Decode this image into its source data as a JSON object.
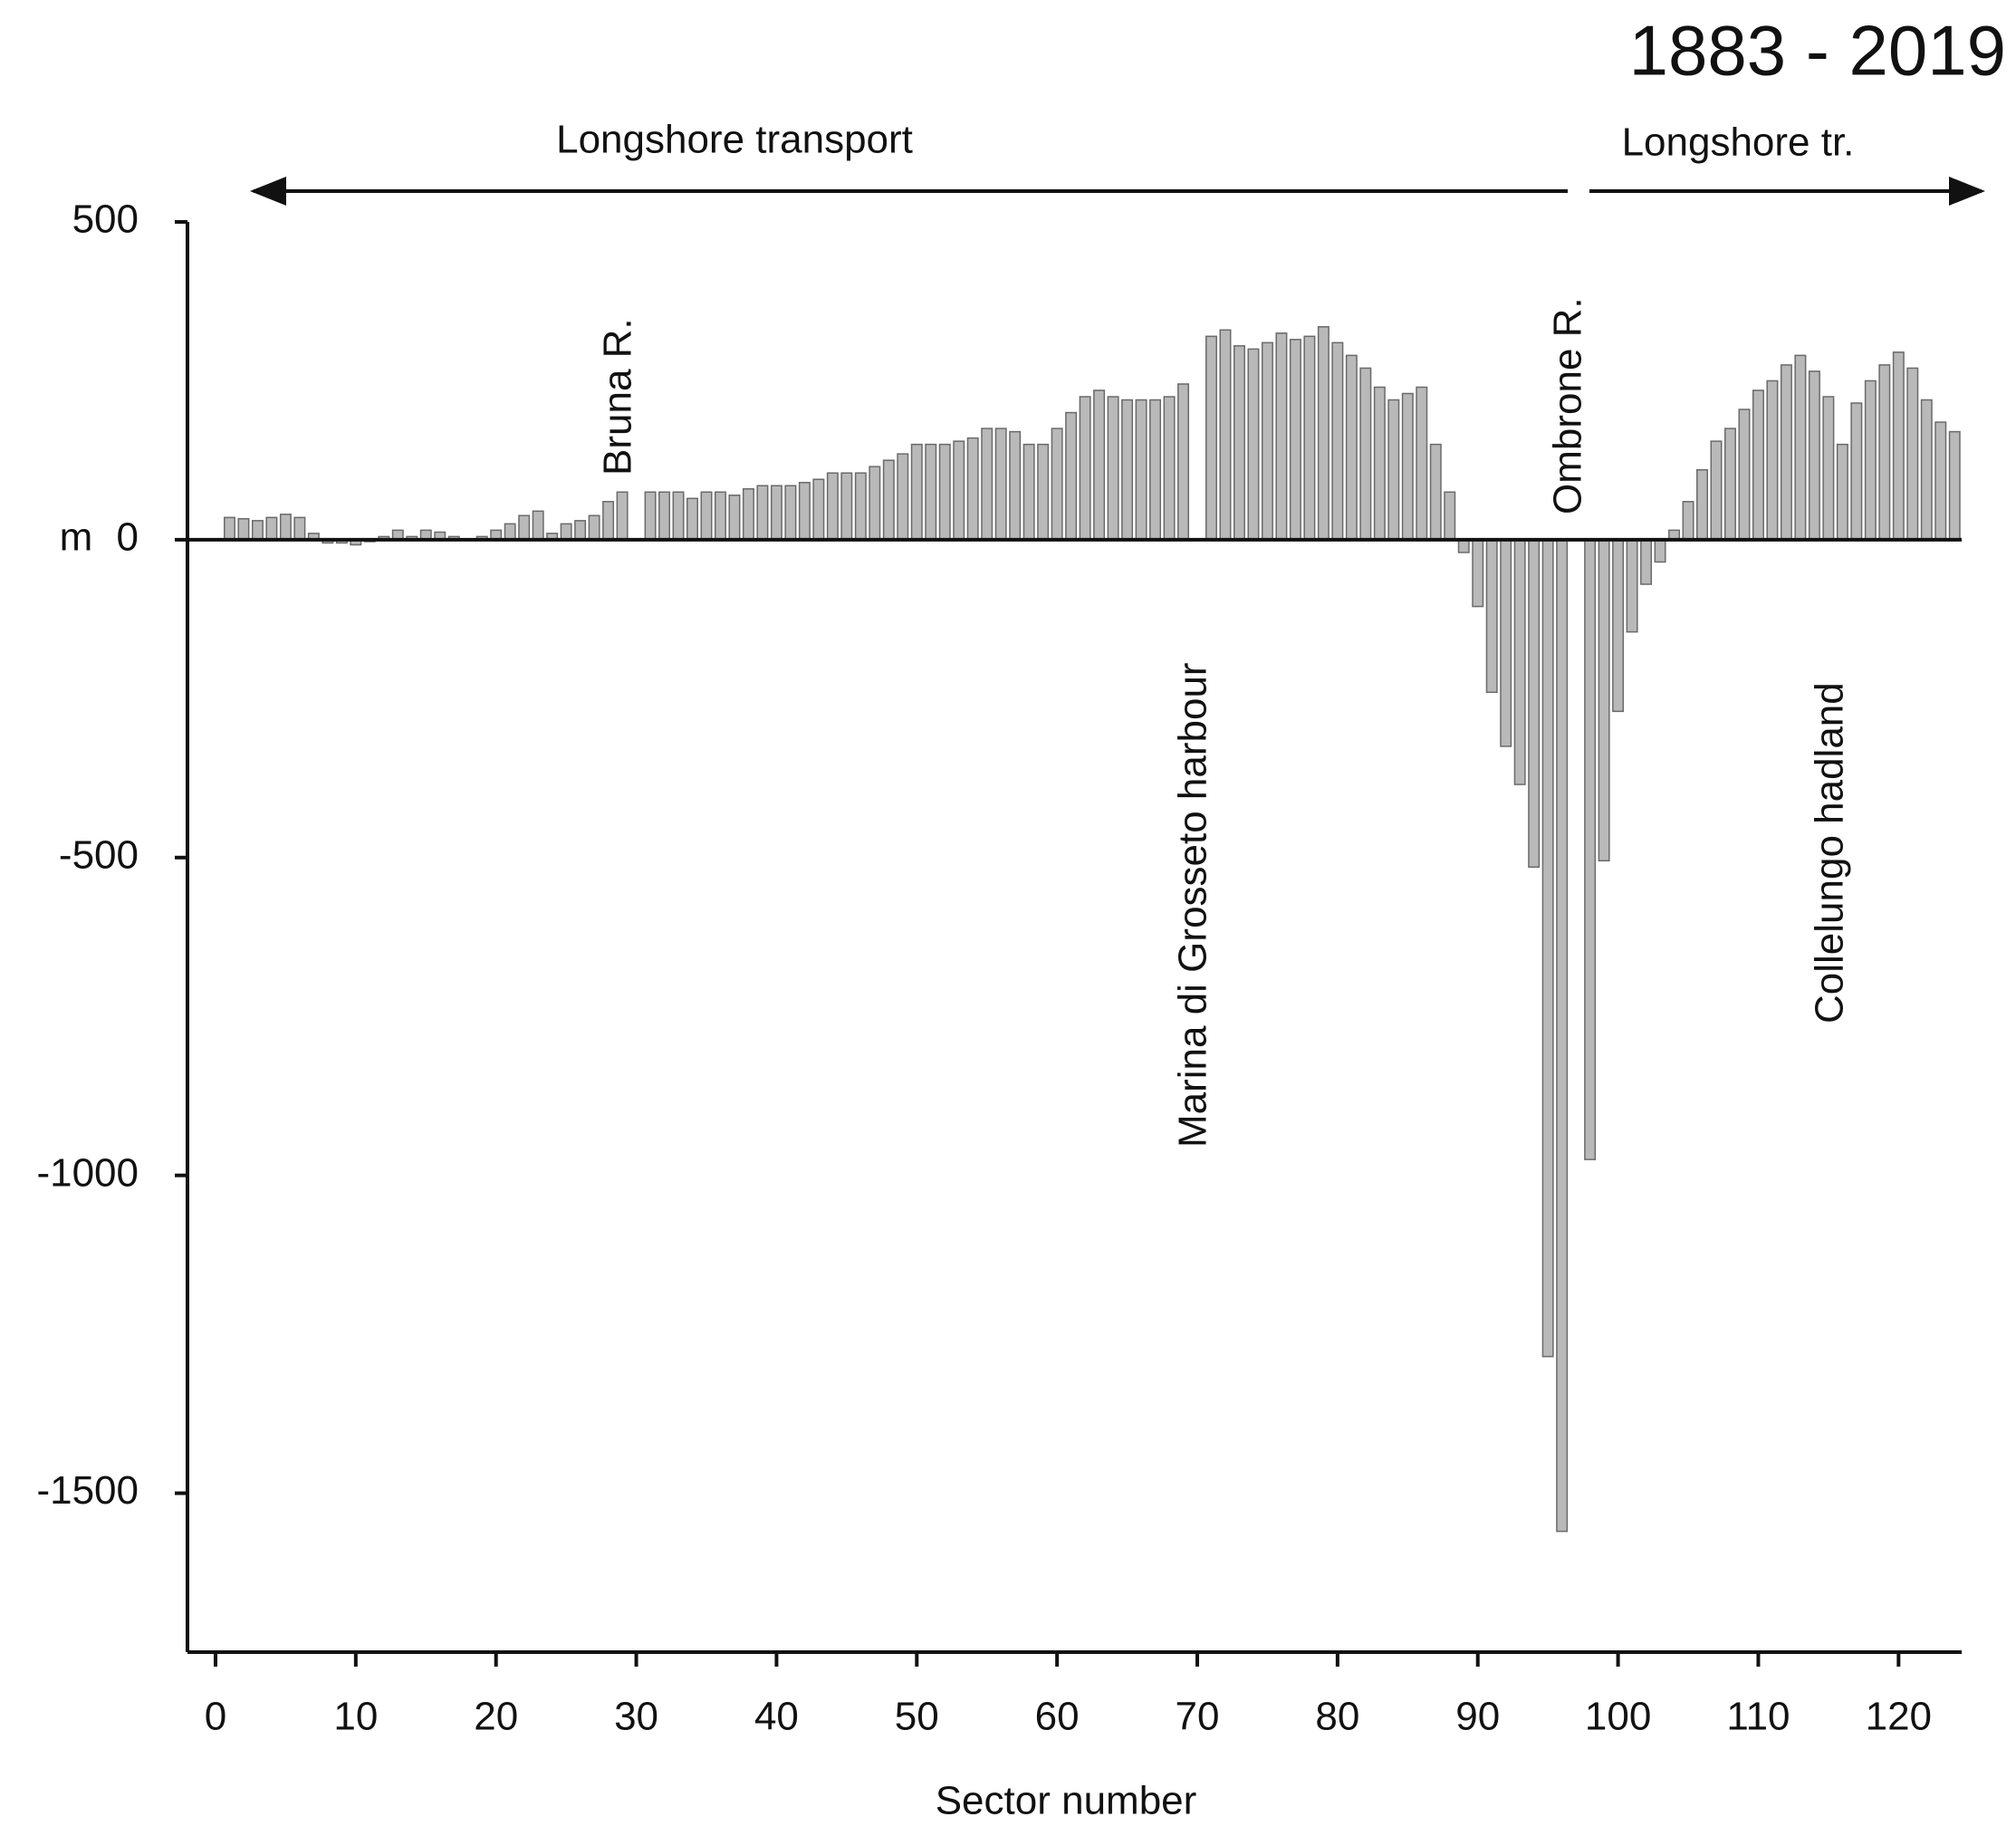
{
  "chart_data": {
    "type": "bar",
    "title": "1883 - 2019",
    "xlabel": "Sector number",
    "ylabel": "m",
    "annotations": [
      "Longshore transport",
      "Longshore tr.",
      "Bruna R.",
      "Marina di Grosseto harbour",
      "Ombrone R.",
      "Collelungo hadland"
    ],
    "x": [
      1,
      2,
      3,
      4,
      5,
      6,
      7,
      8,
      9,
      10,
      11,
      12,
      13,
      14,
      15,
      16,
      17,
      18,
      19,
      20,
      21,
      22,
      23,
      24,
      25,
      26,
      27,
      28,
      29,
      30,
      31,
      32,
      33,
      34,
      35,
      36,
      37,
      38,
      39,
      40,
      41,
      42,
      43,
      44,
      45,
      46,
      47,
      48,
      49,
      50,
      51,
      52,
      53,
      54,
      55,
      56,
      57,
      58,
      59,
      60,
      61,
      62,
      63,
      64,
      65,
      66,
      67,
      68,
      69,
      70,
      71,
      72,
      73,
      74,
      75,
      76,
      77,
      78,
      79,
      80,
      81,
      82,
      83,
      84,
      85,
      86,
      87,
      88,
      89,
      90,
      91,
      92,
      93,
      94,
      95,
      96,
      97,
      98,
      99,
      100,
      101,
      102,
      103,
      104,
      105,
      106,
      107,
      108,
      109,
      110,
      111,
      112,
      113,
      114,
      115,
      116,
      117,
      118,
      119,
      120,
      121,
      122,
      123,
      124
    ],
    "values": [
      35,
      33,
      30,
      35,
      40,
      35,
      10,
      -5,
      -5,
      -8,
      -3,
      5,
      15,
      5,
      15,
      12,
      5,
      0,
      5,
      15,
      25,
      38,
      45,
      10,
      25,
      30,
      38,
      60,
      75,
      null,
      75,
      75,
      75,
      65,
      75,
      75,
      70,
      80,
      85,
      85,
      85,
      90,
      95,
      105,
      105,
      105,
      115,
      125,
      135,
      150,
      150,
      150,
      155,
      160,
      175,
      175,
      170,
      150,
      150,
      175,
      200,
      225,
      235,
      225,
      220,
      220,
      220,
      225,
      245,
      null,
      320,
      330,
      305,
      300,
      310,
      325,
      315,
      320,
      335,
      310,
      290,
      270,
      240,
      220,
      230,
      240,
      150,
      75,
      -20,
      -105,
      -240,
      -325,
      -385,
      -515,
      -1285,
      -1560,
      null,
      -975,
      -505,
      -270,
      -145,
      -70,
      -35,
      15,
      60,
      110,
      155,
      175,
      205,
      235,
      250,
      275,
      290,
      265,
      225,
      150,
      215,
      250,
      275,
      295,
      270,
      220,
      185,
      170
    ],
    "color": "#b9b9b9",
    "xlim": [
      -2,
      124.5
    ],
    "xticks": [
      0,
      10,
      20,
      30,
      40,
      50,
      60,
      70,
      80,
      90,
      100,
      110,
      120
    ],
    "ylim": [
      -1750,
      500
    ],
    "yticks": [
      500,
      0,
      -500,
      -1000,
      -1500
    ],
    "grid": false
  }
}
